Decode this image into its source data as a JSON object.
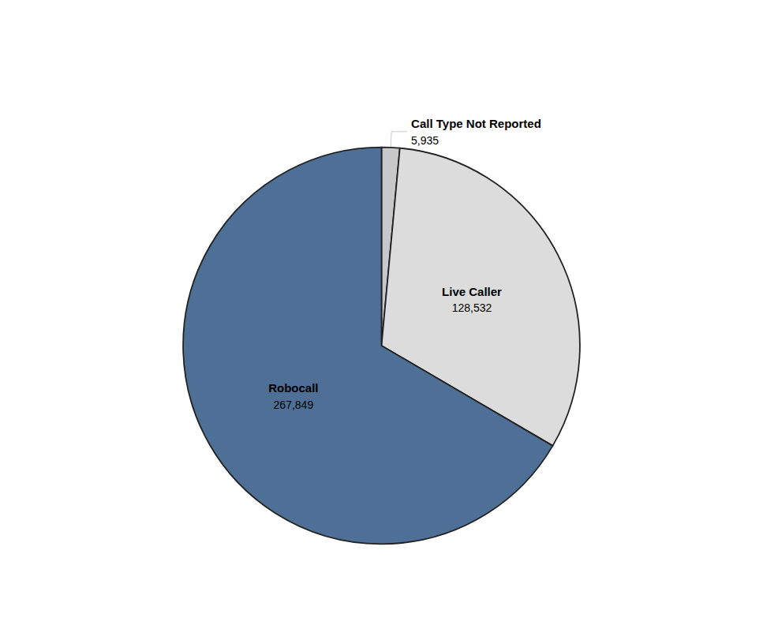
{
  "chart_data": {
    "type": "pie",
    "categories": [
      "Call Type Not Reported",
      "Live Caller",
      "Robocall"
    ],
    "values": [
      5935,
      128532,
      267849
    ],
    "value_labels": [
      "5,935",
      "128,532",
      "267,849"
    ],
    "colors": [
      "#C8C8C8",
      "#DCDCDC",
      "#4E7096"
    ],
    "data_labels": true
  }
}
